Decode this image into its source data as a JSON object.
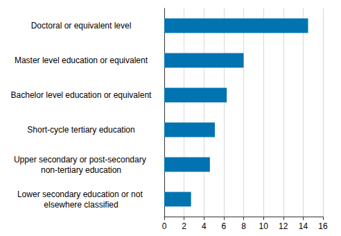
{
  "chart_data": {
    "type": "bar",
    "orientation": "horizontal",
    "categories": [
      "Doctoral or equivalent level",
      "Master level education or equivalent",
      "Bachelor level education or equivalent",
      "Short-cycle tertiary education",
      "Upper secondary or post-secondary non-tertiary education",
      "Lower secondary education or not elsewhere classified"
    ],
    "values": [
      14.5,
      8.0,
      6.3,
      5.1,
      4.6,
      2.7
    ],
    "color": "#0073b0",
    "xlim": [
      0,
      16
    ],
    "xticks": [
      0,
      2,
      4,
      6,
      8,
      10,
      12,
      14,
      16
    ],
    "grid": true
  }
}
